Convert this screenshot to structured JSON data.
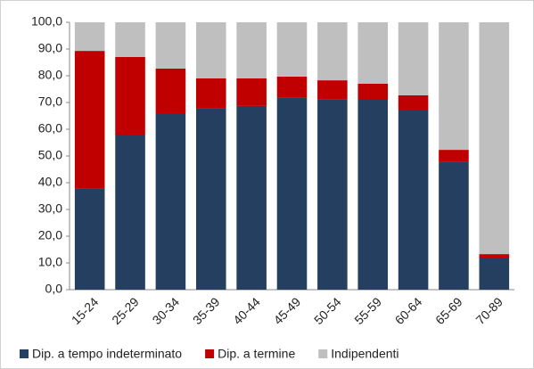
{
  "chart_data": {
    "type": "stacked-bar",
    "categories": [
      "15-24",
      "25-29",
      "30-34",
      "35-39",
      "40-44",
      "45-49",
      "50-54",
      "55-59",
      "60-64",
      "65-69",
      "70-89"
    ],
    "series": [
      {
        "name": "Dip. a tempo indeterminato",
        "color": "#243f60",
        "values": [
          37.7,
          58,
          66,
          67.7,
          68.7,
          71.7,
          71.3,
          71,
          67,
          47.7,
          12
        ]
      },
      {
        "name": "Dip. a termine",
        "color": "#c00000",
        "values": [
          51.6,
          29,
          16.7,
          11.3,
          10.3,
          8,
          7,
          6,
          5.7,
          4.6,
          1.3
        ]
      },
      {
        "name": "Indipendenti",
        "color": "#bfbfbf",
        "values": [
          10.7,
          13,
          17.3,
          21,
          21,
          20.3,
          21.7,
          23,
          27.3,
          47.7,
          86.7
        ]
      }
    ],
    "ylim": [
      0,
      100
    ],
    "yticks": [
      {
        "value": 0,
        "label": "0,0"
      },
      {
        "value": 10,
        "label": "10,0"
      },
      {
        "value": 20,
        "label": "20,0"
      },
      {
        "value": 30,
        "label": "30,0"
      },
      {
        "value": 40,
        "label": "40,0"
      },
      {
        "value": 50,
        "label": "50,0"
      },
      {
        "value": 60,
        "label": "60,0"
      },
      {
        "value": 70,
        "label": "70,0"
      },
      {
        "value": 80,
        "label": "80,0"
      },
      {
        "value": 90,
        "label": "90,0"
      },
      {
        "value": 100,
        "label": "100,0"
      }
    ],
    "legend": "bottom"
  }
}
